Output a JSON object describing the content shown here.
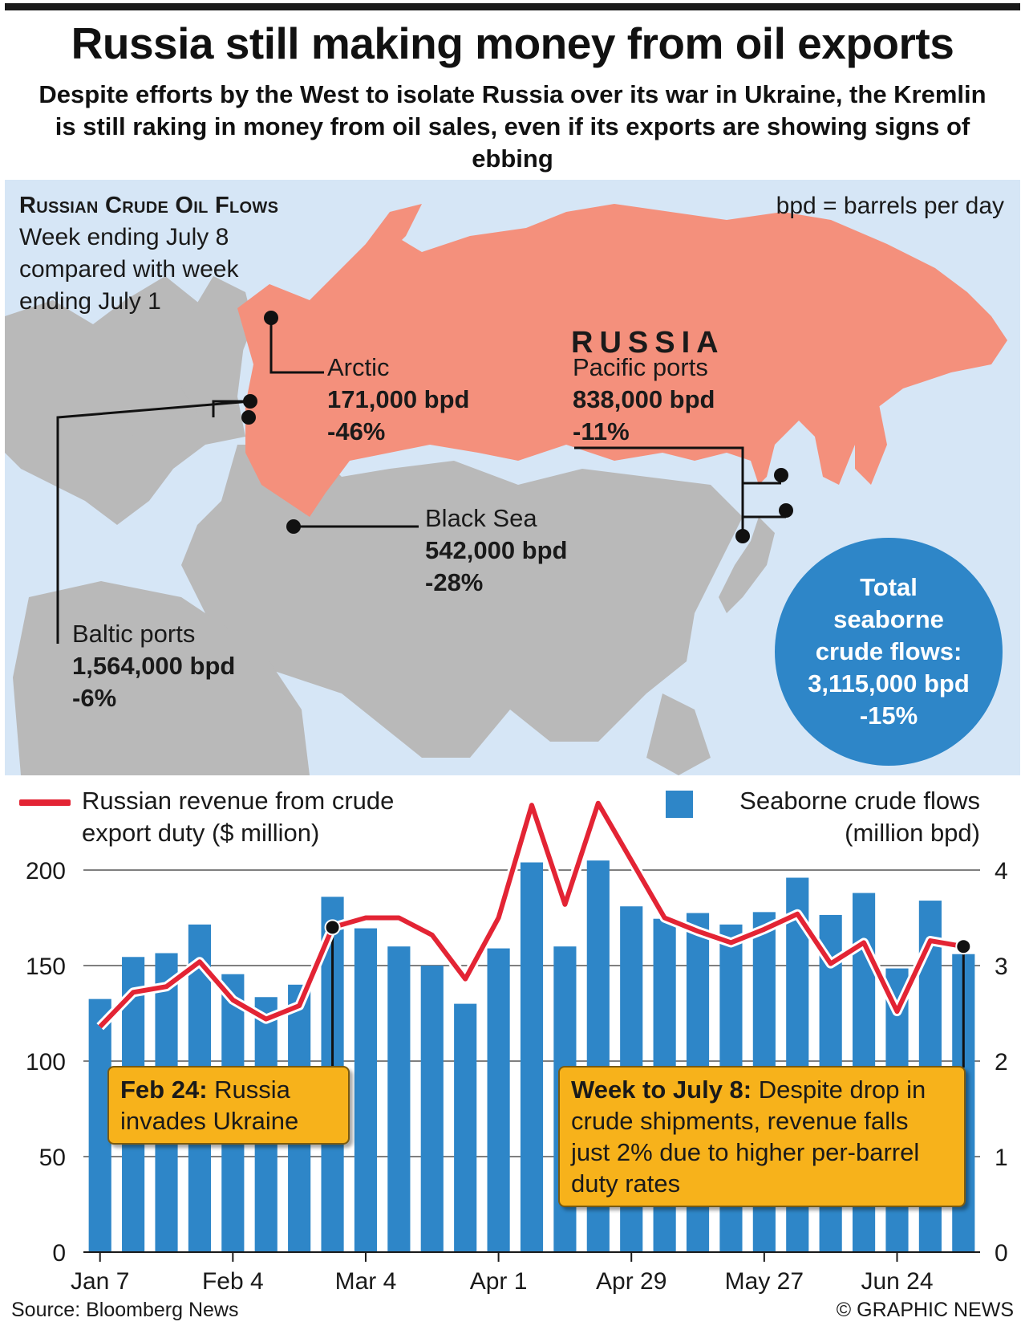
{
  "header": {
    "title": "Russia still making money from oil exports",
    "subtitle": "Despite efforts by the West to isolate Russia over its war in Ukraine, the Kremlin is still raking in money from oil sales, even if its exports are showing signs of ebbing"
  },
  "map": {
    "title": "Russian Crude Oil Flows",
    "subtitle": "Week ending July 8 compared with week ending July 1",
    "note": "bpd = barrels per day",
    "country_label": "RUSSIA",
    "flows": [
      {
        "name": "Arctic",
        "value": "171,000 bpd",
        "change": "-46%"
      },
      {
        "name": "Pacific ports",
        "value": "838,000 bpd",
        "change": "-11%"
      },
      {
        "name": "Black Sea",
        "value": "542,000 bpd",
        "change": "-28%"
      },
      {
        "name": "Baltic ports",
        "value": "1,564,000 bpd",
        "change": "-6%"
      }
    ],
    "total": {
      "line1": "Total",
      "line2": "seaborne",
      "line3": "crude flows:",
      "value": "3,115,000 bpd",
      "change": "-15%"
    },
    "colors": {
      "russia": "#f4907c",
      "land": "#b9b9b9",
      "sea": "#d6e6f6"
    }
  },
  "chart_data": {
    "type": "bar+line",
    "x": [
      "Jan 7",
      "Jan 14",
      "Jan 21",
      "Jan 28",
      "Feb 4",
      "Feb 11",
      "Feb 18",
      "Feb 25",
      "Mar 4",
      "Mar 11",
      "Mar 18",
      "Mar 25",
      "Apr 1",
      "Apr 8",
      "Apr 15",
      "Apr 22",
      "Apr 29",
      "May 6",
      "May 13",
      "May 20",
      "May 27",
      "Jun 3",
      "Jun 10",
      "Jun 17",
      "Jun 24",
      "Jul 1",
      "Jul 8"
    ],
    "xtick_labels": [
      "Jan 7",
      "Feb 4",
      "Mar 4",
      "Apr 1",
      "Apr 29",
      "May 27",
      "Jun 24"
    ],
    "series": [
      {
        "name": "Seaborne crude flows (million bpd)",
        "type": "bar",
        "axis": "right",
        "color": "#2e86c8",
        "values": [
          2.65,
          3.09,
          3.13,
          3.43,
          2.91,
          2.67,
          2.8,
          3.72,
          3.39,
          3.2,
          3.0,
          2.6,
          3.18,
          4.08,
          3.2,
          4.1,
          3.62,
          3.49,
          3.55,
          3.43,
          3.56,
          3.92,
          3.53,
          3.76,
          2.97,
          3.68,
          3.12
        ]
      },
      {
        "name": "Russian revenue from crude export duty ($ million)",
        "type": "line",
        "axis": "left",
        "color": "#e32434",
        "values": [
          118,
          136,
          139,
          152,
          132,
          122,
          129,
          170,
          175,
          175,
          166,
          143,
          175,
          234,
          182,
          235,
          205,
          175,
          168,
          162,
          169,
          177,
          151,
          162,
          126,
          163,
          160
        ]
      }
    ],
    "legend_left": "Russian revenue from crude export duty ($ million)",
    "legend_right_line1": "Seaborne crude flows",
    "legend_right_line2": "(million bpd)",
    "ylim_left": [
      0,
      200
    ],
    "ylim_right": [
      0,
      4
    ],
    "yticks_left": [
      "0",
      "50",
      "100",
      "150",
      "200"
    ],
    "yticks_right": [
      "0",
      "1",
      "2",
      "3",
      "4"
    ],
    "grid": true,
    "annotations": [
      {
        "bold": "Feb 24:",
        "text": "Russia invades Ukraine",
        "at": "Feb 25"
      },
      {
        "bold": "Week to July 8:",
        "text": "Despite drop in crude shipments, revenue falls just 2% due to higher per-barrel duty rates",
        "at": "Jul 8"
      }
    ]
  },
  "footer": {
    "source": "Source: Bloomberg News",
    "credit": "© GRAPHIC NEWS"
  }
}
